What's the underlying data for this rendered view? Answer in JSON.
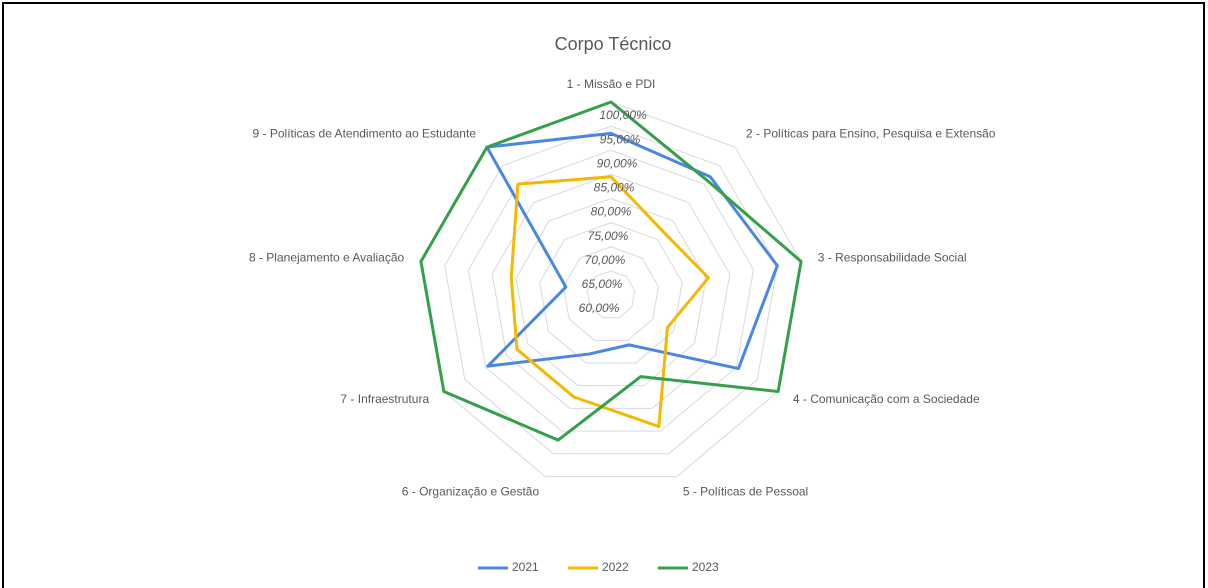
{
  "chart_data": {
    "type": "radar",
    "title": "Corpo Técnico",
    "categories": [
      "1 - Missão e PDI",
      "2 - Políticas para Ensino, Pesquisa e Extensão",
      "3 - Responsabilidade Social",
      "4 - Comunicação com a Sociedade",
      "5 - Políticas de Pessoal",
      "6 - Organização e Gestão",
      "7 - Infraestrutura",
      "8 - Planejamento e Avaliação",
      "9 - Políticas de Atendimento ao Estudante"
    ],
    "series": [
      {
        "name": "2021",
        "color": "#4a86e8",
        "values": [
          93.5,
          92,
          95,
          90.5,
          71,
          73,
          89.5,
          69.5,
          100
        ]
      },
      {
        "name": "2022",
        "color": "#f5b800",
        "values": [
          84.5,
          77,
          80.5,
          73.5,
          89,
          82.5,
          82.5,
          81,
          90
        ]
      },
      {
        "name": "2023",
        "color": "#34a04a",
        "values": [
          100,
          91,
          100,
          100,
          78,
          92,
          100,
          100,
          100
        ]
      }
    ],
    "ylim": [
      60,
      100
    ],
    "yticks": [
      {
        "value": 60,
        "label": "60,00%"
      },
      {
        "value": 65,
        "label": "65,00%"
      },
      {
        "value": 70,
        "label": "70,00%"
      },
      {
        "value": 75,
        "label": "75,00%"
      },
      {
        "value": 80,
        "label": "80,00%"
      },
      {
        "value": 85,
        "label": "85,00%"
      },
      {
        "value": 90,
        "label": "90,00%"
      },
      {
        "value": 95,
        "label": "95,00%"
      },
      {
        "value": 100,
        "label": "100,00%"
      }
    ],
    "grid": true,
    "legend": "bottom"
  }
}
